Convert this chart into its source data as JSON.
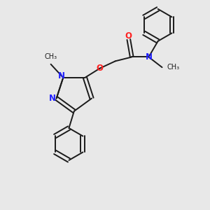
{
  "background_color": "#e8e8e8",
  "bond_color": "#1a1a1a",
  "n_color": "#2020ff",
  "o_color": "#ff2020",
  "font_size": 8.5,
  "fig_width": 3.0,
  "fig_height": 3.0,
  "dpi": 100,
  "xlim": [
    0,
    10
  ],
  "ylim": [
    0,
    10
  ]
}
